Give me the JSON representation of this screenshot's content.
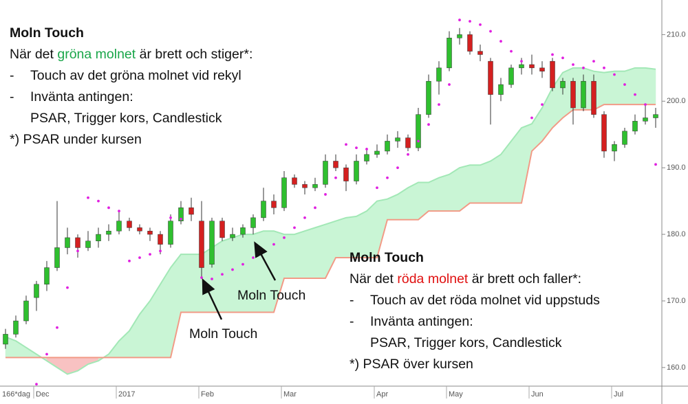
{
  "chart_data": {
    "type": "candlestick",
    "candles": [
      [
        163.5,
        165.8,
        162.8,
        165
      ],
      [
        165,
        167.8,
        164.5,
        167
      ],
      [
        167,
        170.8,
        166.5,
        170
      ],
      [
        170.5,
        173,
        168.5,
        172.5
      ],
      [
        172.5,
        176,
        171.5,
        175
      ],
      [
        175,
        185,
        174.5,
        178
      ],
      [
        178,
        181,
        177,
        179.5
      ],
      [
        179.5,
        180,
        176.5,
        178
      ],
      [
        178,
        180.5,
        177.5,
        179
      ],
      [
        179,
        181,
        178,
        180
      ],
      [
        180,
        181.5,
        179,
        180.5
      ],
      [
        180.5,
        183.5,
        180,
        182
      ],
      [
        182,
        182.5,
        180.5,
        181
      ],
      [
        181,
        181.5,
        180,
        180.5
      ],
      [
        180.5,
        181,
        179,
        180
      ],
      [
        180,
        180.5,
        177,
        178.5
      ],
      [
        178.5,
        183,
        178,
        182
      ],
      [
        182,
        185,
        181.5,
        184
      ],
      [
        184,
        185.5,
        182,
        183
      ],
      [
        182,
        185,
        173.5,
        175
      ],
      [
        175.5,
        182.5,
        175,
        182
      ],
      [
        182,
        182.5,
        179,
        179.5
      ],
      [
        179.5,
        181,
        179,
        180
      ],
      [
        180,
        181.5,
        179.5,
        181
      ],
      [
        181,
        183,
        180,
        182.5
      ],
      [
        182.5,
        187,
        182,
        185
      ],
      [
        185,
        186,
        183,
        184
      ],
      [
        184,
        189.5,
        183.5,
        188.5
      ],
      [
        188.5,
        189,
        187,
        187.5
      ],
      [
        187.5,
        188,
        186,
        187
      ],
      [
        187,
        188.5,
        186.5,
        187.5
      ],
      [
        187.5,
        192,
        187,
        191
      ],
      [
        191,
        192,
        189.5,
        190
      ],
      [
        190,
        190.5,
        186.5,
        188
      ],
      [
        188,
        192,
        187.5,
        191
      ],
      [
        191,
        193,
        190.5,
        192
      ],
      [
        192,
        193.5,
        191.5,
        192.5
      ],
      [
        192.5,
        195,
        192,
        194
      ],
      [
        194,
        195.5,
        193,
        194.5
      ],
      [
        194.5,
        195,
        192.5,
        193
      ],
      [
        193,
        199,
        192.5,
        198
      ],
      [
        198,
        204,
        197.5,
        203
      ],
      [
        203,
        206,
        201,
        205
      ],
      [
        205,
        210.5,
        204.5,
        209.5
      ],
      [
        209.5,
        211,
        208.5,
        210
      ],
      [
        210,
        210.5,
        207,
        207.5
      ],
      [
        207.5,
        208.5,
        206,
        207
      ],
      [
        206,
        206.5,
        196.5,
        201
      ],
      [
        201,
        203.5,
        200,
        202.5
      ],
      [
        202.5,
        205.5,
        202,
        205
      ],
      [
        205,
        206.5,
        204,
        205.5
      ],
      [
        205.5,
        207,
        204,
        205
      ],
      [
        205,
        206,
        203.5,
        204.5
      ],
      [
        206,
        206.5,
        201.5,
        202
      ],
      [
        202,
        203.5,
        201,
        203
      ],
      [
        203,
        203.5,
        196.5,
        199
      ],
      [
        199,
        204,
        198.5,
        203
      ],
      [
        203,
        204,
        197.5,
        198
      ],
      [
        198,
        198.5,
        191.5,
        192.5
      ],
      [
        192.5,
        194,
        191,
        193.5
      ],
      [
        193.5,
        196,
        193,
        195.5
      ],
      [
        195.5,
        198,
        195,
        197
      ],
      [
        197,
        199.5,
        196.5,
        197.5
      ],
      [
        197.5,
        199,
        196,
        198
      ]
    ],
    "span_a": [
      164.6,
      164,
      163,
      162,
      161,
      160,
      159,
      159.5,
      160.5,
      161,
      162,
      164,
      165.5,
      168,
      170,
      172.5,
      175,
      177,
      177,
      177,
      178,
      179,
      179.5,
      180,
      180,
      180.5,
      180.5,
      180,
      180,
      180.5,
      181,
      181.5,
      182,
      182.5,
      182.7,
      183.5,
      185,
      185.3,
      186,
      187,
      187.8,
      187.8,
      188.5,
      189,
      190,
      190.4,
      190.4,
      191,
      192,
      194,
      196,
      196.6,
      199,
      202,
      204.3,
      205,
      205,
      204.5,
      204.3,
      204.5,
      204.5,
      205,
      205,
      204.8
    ],
    "span_b": [
      161.5,
      161.5,
      161.5,
      161.5,
      161.5,
      161.5,
      161.5,
      161.5,
      161.5,
      161.5,
      161.5,
      161.5,
      161.5,
      161.5,
      161.5,
      161.5,
      161.5,
      168.3,
      168.3,
      168.3,
      168.3,
      168.3,
      168.3,
      168.3,
      168.3,
      168.3,
      168.3,
      173.4,
      173.4,
      173.4,
      173.4,
      173.4,
      176.5,
      176.5,
      176.5,
      176.5,
      176.5,
      182.2,
      182.2,
      182.2,
      182.2,
      183.5,
      183.5,
      183.5,
      183.5,
      184.7,
      184.7,
      184.7,
      184.7,
      184.7,
      184.7,
      192.5,
      194,
      196,
      197.5,
      198.7,
      198.7,
      198.7,
      199.5,
      199.5,
      199.5,
      199.5,
      199.5,
      199.5
    ],
    "psar": [
      null,
      null,
      null,
      157.5,
      162,
      166,
      172,
      177.5,
      185.5,
      185,
      184,
      183.5,
      176,
      176.5,
      177,
      177.5,
      182.5,
      182.3,
      null,
      173.5,
      173.3,
      174,
      174.7,
      175.5,
      176.5,
      177.5,
      178.5,
      179.5,
      181,
      182.5,
      184,
      186,
      188.5,
      193.5,
      193,
      192.8,
      187,
      188.5,
      190,
      192,
      194,
      196.5,
      199.5,
      202.5,
      212.2,
      212,
      211.5,
      210.5,
      209,
      207.5,
      206,
      197.5,
      199.5,
      207,
      206.5,
      205.5,
      205,
      206,
      205,
      204,
      202.5,
      201,
      199.5,
      190.5
    ],
    "ylim": [
      157.2,
      215.2
    ],
    "yticks": [
      {
        "value": 160,
        "label": "160.0"
      },
      {
        "value": 170,
        "label": "170.0"
      },
      {
        "value": 180,
        "label": "180.0"
      },
      {
        "value": 190,
        "label": "190.0"
      },
      {
        "value": 200,
        "label": "200.0"
      },
      {
        "value": 210,
        "label": "210.0"
      }
    ],
    "xticks": [
      {
        "value": 3,
        "label": "Dec"
      },
      {
        "value": 11,
        "label": "2017"
      },
      {
        "value": 19,
        "label": "Feb"
      },
      {
        "value": 27,
        "label": "Mar"
      },
      {
        "value": 36,
        "label": "Apr"
      },
      {
        "value": 43,
        "label": "May"
      },
      {
        "value": 51,
        "label": "Jun"
      },
      {
        "value": 59,
        "label": "Jul"
      }
    ],
    "period_label": "166*dag",
    "colors": {
      "up": "#2fbf2f",
      "down": "#d42020",
      "cloud_up": "#c9f5d5",
      "cloud_down": "#f8c2c2",
      "span_a": "#a2e8b6",
      "span_b": "#f29a86",
      "psar": "#e020e0"
    }
  },
  "annotations": [
    {
      "title": "Moln Touch",
      "intro": {
        "before": "När det ",
        "highlight": "gröna molnet",
        "after": " är brett och stiger*:",
        "color": "#1aa64a"
      },
      "items": [
        {
          "bullet": "-",
          "text": "Touch av det gröna molnet vid rekyl"
        },
        {
          "bullet": "-",
          "text": "Invänta antingen:"
        }
      ],
      "continuation": "PSAR, Trigger kors, Candlestick",
      "footnote": "*) PSAR under kursen"
    },
    {
      "title": "Moln Touch",
      "intro": {
        "before": "När det ",
        "highlight": "röda molnet",
        "after": " är brett och faller*:",
        "color": "#e01010"
      },
      "items": [
        {
          "bullet": "-",
          "text": "Touch av det röda molnet vid uppstuds"
        },
        {
          "bullet": "-",
          "text": "Invänta antingen:"
        }
      ],
      "continuation": "PSAR, Trigger kors, Candlestick",
      "footnote": "*) PSAR över kursen"
    }
  ],
  "callouts": [
    "Moln Touch",
    "Moln Touch"
  ]
}
